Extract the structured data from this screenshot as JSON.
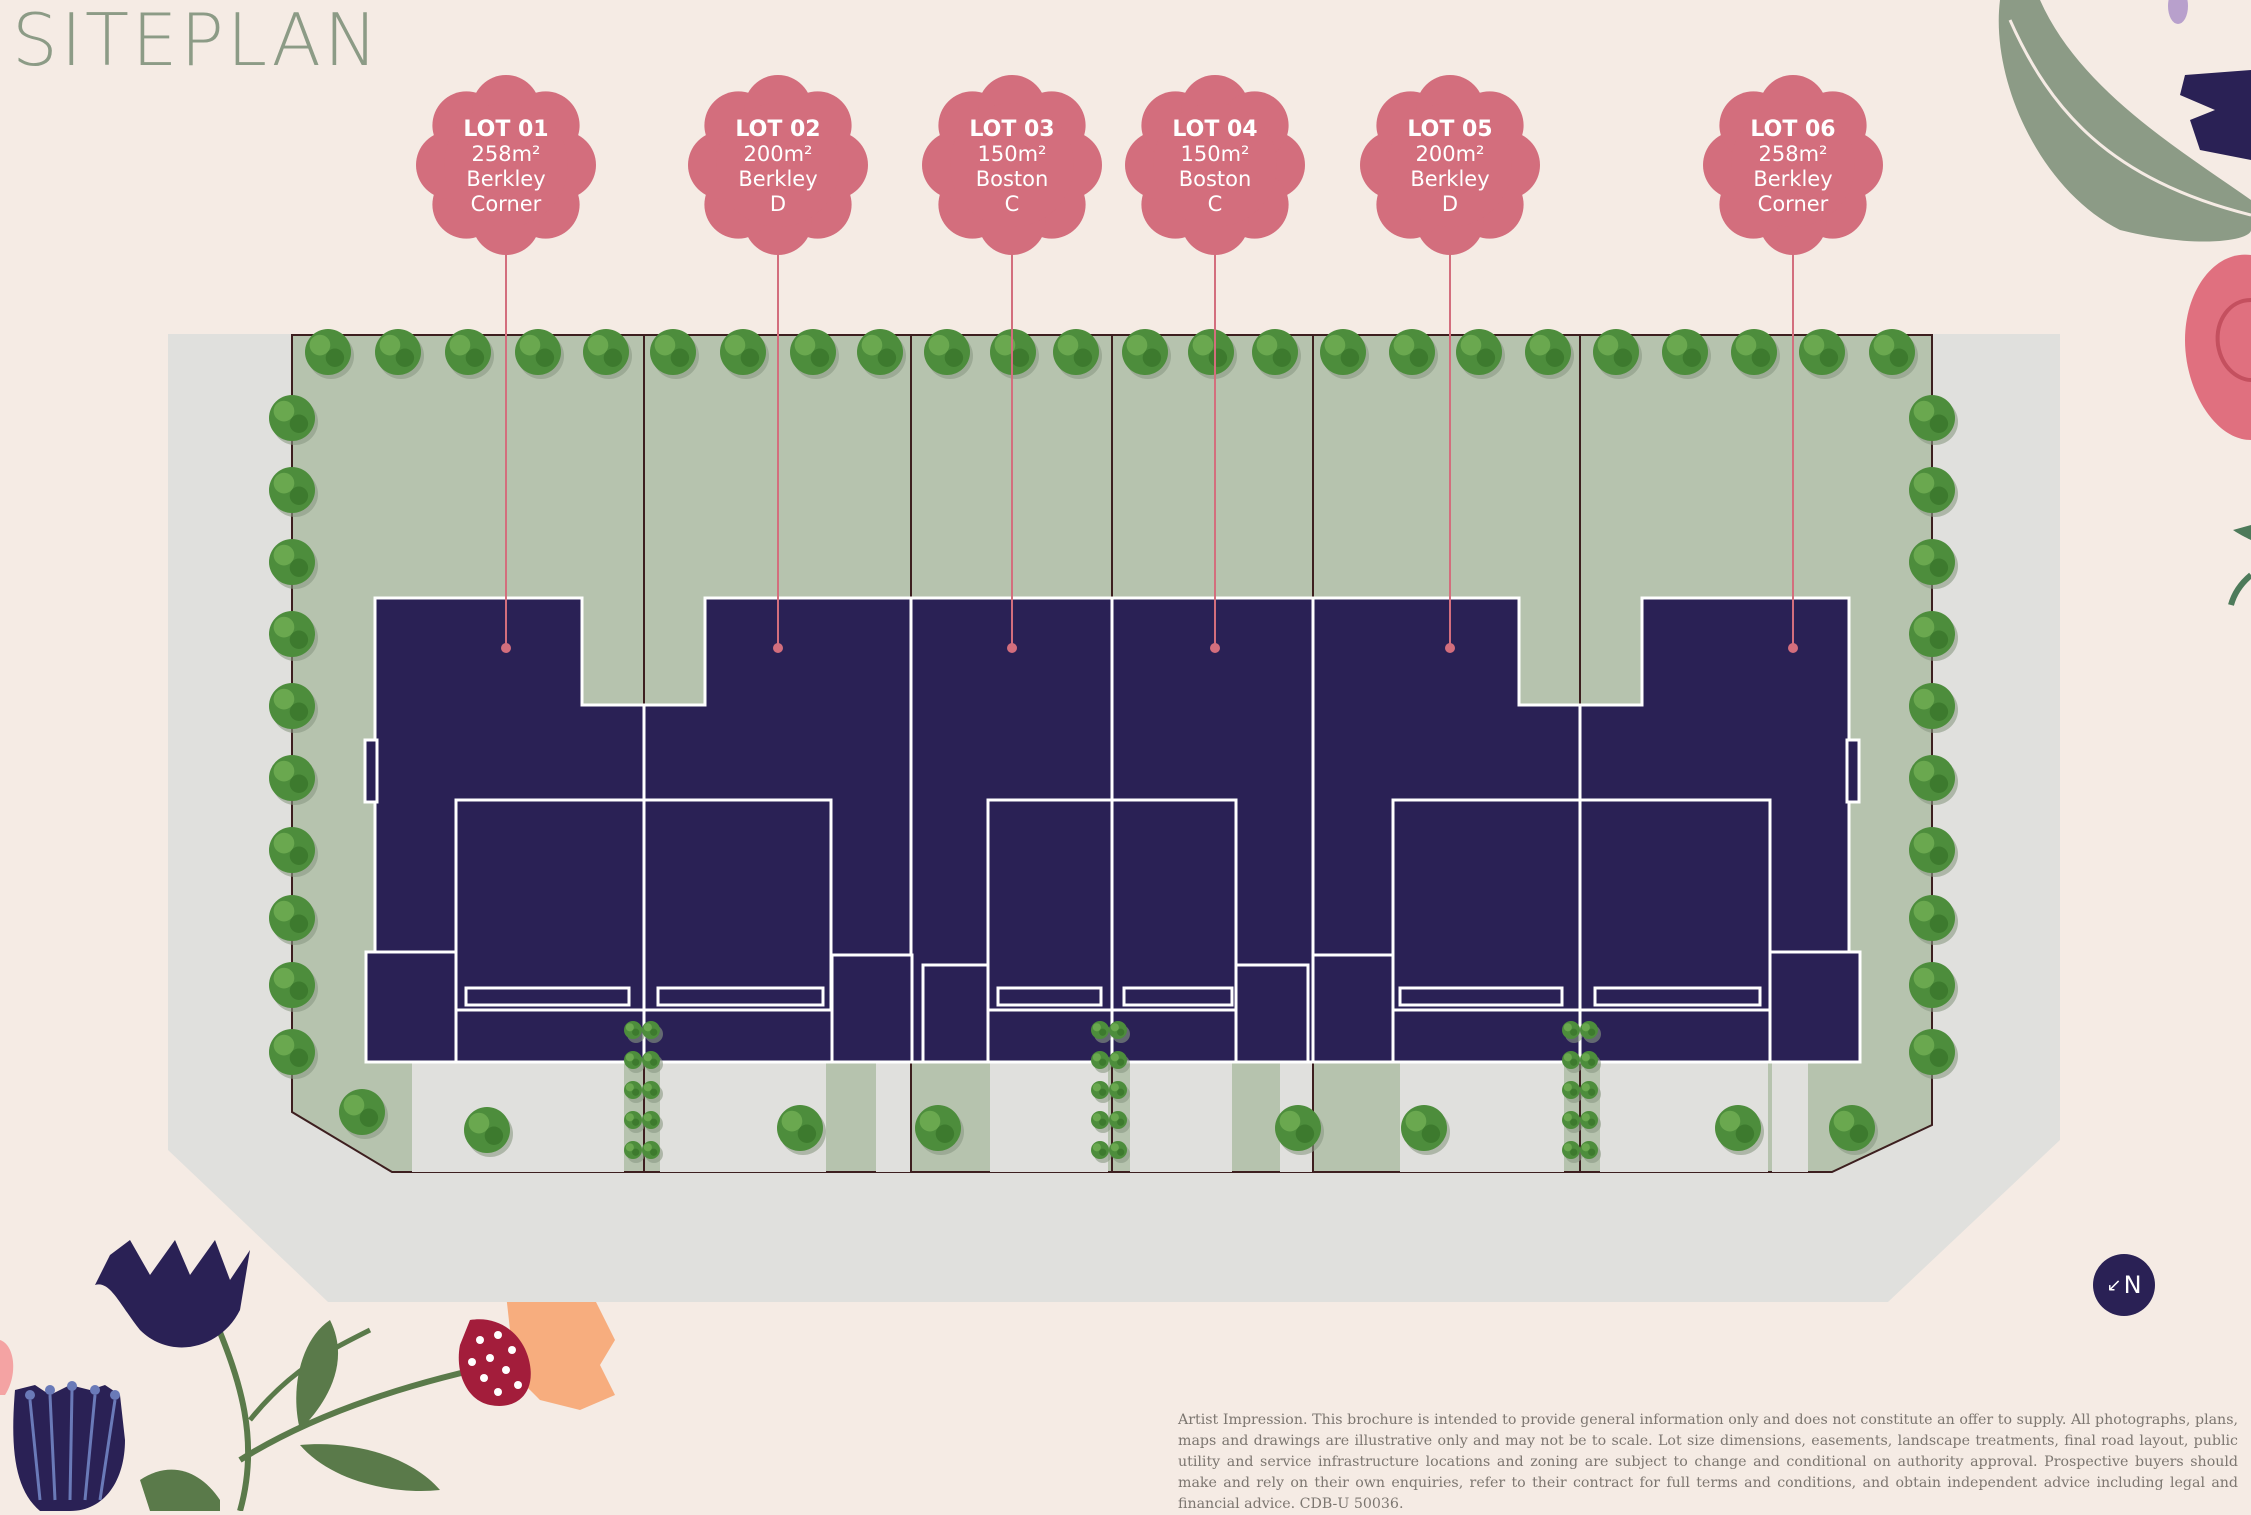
{
  "title": "SITEPLAN",
  "lots": [
    {
      "name": "LOT 01",
      "area": "258m²",
      "design": "Berkley",
      "variant": "Corner"
    },
    {
      "name": "LOT 02",
      "area": "200m²",
      "design": "Berkley",
      "variant": "D"
    },
    {
      "name": "LOT 03",
      "area": "150m²",
      "design": "Boston",
      "variant": "C"
    },
    {
      "name": "LOT 04",
      "area": "150m²",
      "design": "Boston",
      "variant": "C"
    },
    {
      "name": "LOT 05",
      "area": "200m²",
      "design": "Berkley",
      "variant": "D"
    },
    {
      "name": "LOT 06",
      "area": "258m²",
      "design": "Berkley",
      "variant": "Corner"
    }
  ],
  "north": {
    "arrow": "↙",
    "label": "N"
  },
  "disclaimer": "Artist Impression. This brochure is intended to provide general information only and does not constitute an offer to supply. All photographs, plans, maps and drawings are illustrative only and may not be to scale. Lot size dimensions, easements, landscape treatments, final road layout, public utility and service infrastructure locations and zoning are subject to change and conditional on authority approval. Prospective buyers should make and rely on their own enquiries, refer to their contract for full terms and conditions, and obtain independent advice including legal and financial advice. CDB-U 50036.",
  "colors": {
    "background": "#f5ebe4",
    "road": "#e0e0dd",
    "lawn": "#b6c3ae",
    "building": "#2a2155",
    "lot_marker": "#d36e7d",
    "tree": "#4d8d3c",
    "title": "#8c9b86"
  }
}
